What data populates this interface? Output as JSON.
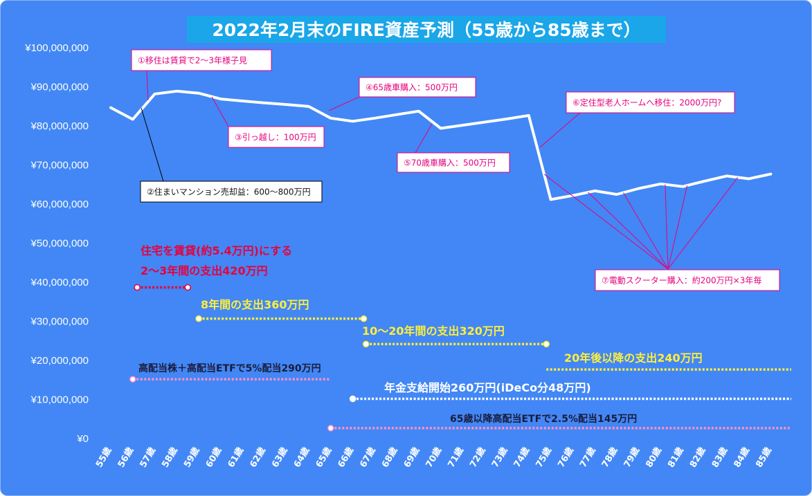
{
  "chart_data": {
    "type": "line",
    "title": "2022年2月末のFIRE資産予測（55歳から85歳まで）",
    "xlabel": "",
    "ylabel": "",
    "categories": [
      "55歳",
      "56歳",
      "57歳",
      "58歳",
      "59歳",
      "60歳",
      "61歳",
      "62歳",
      "63歳",
      "64歳",
      "65歳",
      "66歳",
      "67歳",
      "68歳",
      "69歳",
      "70歳",
      "71歳",
      "72歳",
      "73歳",
      "74歳",
      "75歳",
      "76歳",
      "77歳",
      "78歳",
      "79歳",
      "80歳",
      "81歳",
      "82歳",
      "83歳",
      "84歳",
      "85歳"
    ],
    "series": [
      {
        "name": "",
        "values": [
          84500000,
          81500000,
          88000000,
          88700000,
          88200000,
          86700000,
          86200000,
          85700000,
          85300000,
          84800000,
          81800000,
          81000000,
          81800000,
          82700000,
          83600000,
          79200000,
          80000000,
          80800000,
          81600000,
          82500000,
          61000000,
          62000000,
          63200000,
          62300000,
          63800000,
          65000000,
          64300000,
          65700000,
          67000000,
          66300000,
          67500000
        ]
      }
    ],
    "ylim": [
      0,
      100000000
    ],
    "yticks": [
      {
        "value": 0,
        "label": "¥0"
      },
      {
        "value": 10000000,
        "label": "¥10,000,000"
      },
      {
        "value": 20000000,
        "label": "¥20,000,000"
      },
      {
        "value": 30000000,
        "label": "¥30,000,000"
      },
      {
        "value": 40000000,
        "label": "¥40,000,000"
      },
      {
        "value": 50000000,
        "label": "¥50,000,000"
      },
      {
        "value": 60000000,
        "label": "¥60,000,000"
      },
      {
        "value": 70000000,
        "label": "¥70,000,000"
      },
      {
        "value": 80000000,
        "label": "¥80,000,000"
      },
      {
        "value": 90000000,
        "label": "¥90,000,000"
      },
      {
        "value": 100000000,
        "label": "¥100,000,000"
      }
    ],
    "grid": false,
    "legend": "none",
    "annotations": [
      {
        "id": "a1",
        "text": "①移住は賃貸で2～3年様子見",
        "target_index": 1.7,
        "border": "#e6007e"
      },
      {
        "id": "a2",
        "text": "②住まいマンション売却益：600～800万円",
        "target_index": 1.5,
        "border": "#000000"
      },
      {
        "id": "a3",
        "text": "③引っ越し：100万円",
        "target_index": 4.6,
        "border": "#e6007e"
      },
      {
        "id": "a4",
        "text": "④65歳車購入：500万円",
        "target_index": 10.0,
        "border": "#e6007e"
      },
      {
        "id": "a5",
        "text": "⑤70歳車購入：500万円",
        "target_index": 14.6,
        "border": "#e6007e"
      },
      {
        "id": "a6",
        "text": "⑥定住型老人ホームへ移住：2000万円?",
        "target_index": 19.5,
        "border": "#e6007e"
      },
      {
        "id": "a7",
        "text": "⑦電動スクーター購入：約200万円×3年毎",
        "target_index": [
          19.7,
          21.7,
          23.3,
          25.2,
          26.2,
          28.5
        ],
        "border": "#e6007e"
      }
    ],
    "ranges": [
      {
        "id": "r-housing",
        "lines": [
          "住宅を賃貸(約5.4万円)にする",
          "2～3年間の支出420万円"
        ],
        "value": 38500000,
        "start": 1.2,
        "end": 3.5,
        "line_color": "#e8003c",
        "text_color": "#e8003c",
        "label_pos": "above"
      },
      {
        "id": "r-spend8",
        "lines": [
          "8年間の支出360万円"
        ],
        "value": 30500000,
        "start": 4.0,
        "end": 11.5,
        "line_color": "#ffef3a",
        "text_color": "#ffef3a",
        "label_pos": "above"
      },
      {
        "id": "r-spend10",
        "lines": [
          "10～20年間の支出320万円"
        ],
        "value": 24000000,
        "start": 11.6,
        "end": 19.8,
        "line_color": "#ffef3a",
        "text_color": "#ffef3a",
        "label_pos": "above"
      },
      {
        "id": "r-spend20",
        "lines": [
          "20年後以降の支出240万円"
        ],
        "value": 17500000,
        "start": 19.8,
        "end": 31.1,
        "line_color": "#ffef3a",
        "text_color": "#ffef3a",
        "label_pos": "above",
        "no_dot": true
      },
      {
        "id": "r-div5",
        "lines": [
          "高配当株＋高配当ETFで5%配当290万円"
        ],
        "value": 15000000,
        "start": 1.0,
        "end": 10.0,
        "line_color": "#ff8fc8",
        "text_color": "#1b1b3a",
        "label_pos": "above",
        "no_end_dot": true
      },
      {
        "id": "r-pension",
        "lines": [
          "年金支給開始260万円(iDeCo分48万円)"
        ],
        "value": 10000000,
        "start": 11.0,
        "end": 31.1,
        "line_color": "#ffffff",
        "text_color": "#ffffff",
        "label_pos": "above",
        "no_end_dot": true
      },
      {
        "id": "r-div25",
        "lines": [
          "65歳以降高配当ETFで2.5%配当145万円"
        ],
        "value": 2500000,
        "start": 10.0,
        "end": 31.1,
        "line_color": "#ff8fc8",
        "text_color": "#1b1b3a",
        "label_pos": "above",
        "no_end_dot": true
      }
    ]
  },
  "colors": {
    "background": "#4287f5",
    "title_bg": "#1aa6e8",
    "title_text": "#ffffff",
    "line": "#ffffff",
    "axis_text": "#ffffff"
  }
}
